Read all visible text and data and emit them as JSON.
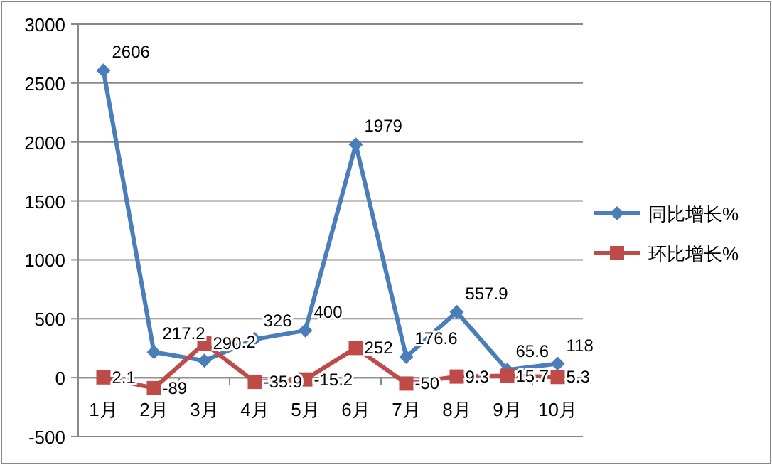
{
  "chart_data": {
    "type": "line",
    "categories": [
      "1月",
      "2月",
      "3月",
      "4月",
      "5月",
      "6月",
      "7月",
      "8月",
      "9月",
      "10月"
    ],
    "series": [
      {
        "name": "同比增长%",
        "color": "#4a7ebb",
        "marker": "diamond",
        "values": [
          2606,
          217.2,
          144.2,
          326,
          400,
          1979,
          176.6,
          557.9,
          65.6,
          118
        ]
      },
      {
        "name": "环比增长%",
        "color": "#be4b48",
        "marker": "square",
        "values": [
          2.1,
          -89,
          290,
          -35.9,
          -15.2,
          252,
          -50,
          9.3,
          15.7,
          5.3
        ]
      }
    ],
    "ylim": [
      -500,
      3000
    ],
    "yticks": [
      -500,
      0,
      500,
      1000,
      1500,
      2000,
      2500,
      3000
    ],
    "grid": "y",
    "legend": "right",
    "data_labels": true
  }
}
